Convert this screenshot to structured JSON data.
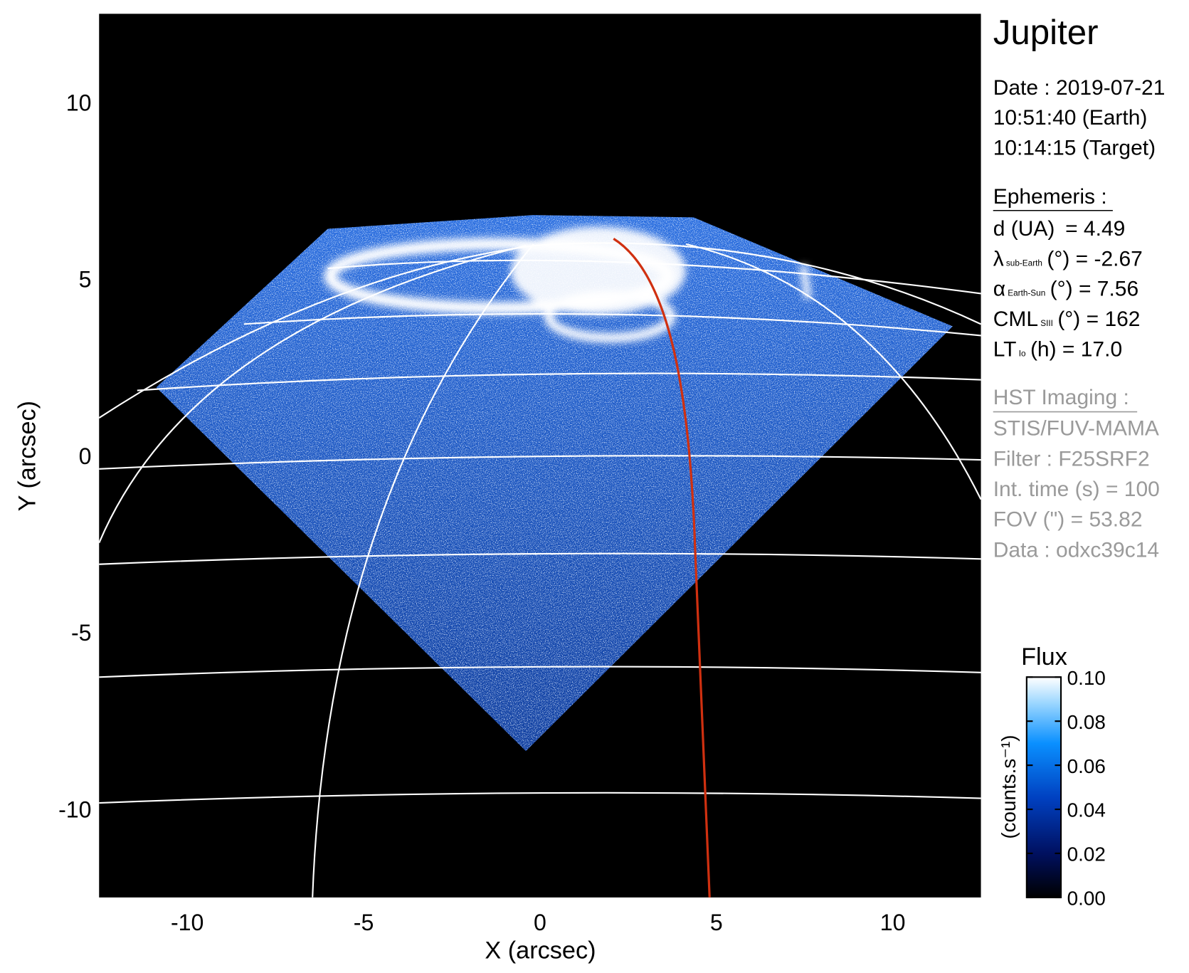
{
  "chart_data": {
    "type": "image",
    "title": "Jupiter",
    "xlabel": "X (arcsec)",
    "ylabel": "Y (arcsec)",
    "xlim": [
      -12.5,
      12.5
    ],
    "ylim": [
      -12.5,
      12.5
    ],
    "xticks": [
      -10,
      -5,
      0,
      5,
      10
    ],
    "yticks": [
      -10,
      -5,
      0,
      5,
      10
    ],
    "colorbar": {
      "title": "Flux",
      "label": "(counts.s⁻¹)",
      "lim": [
        0,
        0.1
      ],
      "ticks": [
        {
          "value": 0,
          "label": "0.00"
        },
        {
          "value": 0.02,
          "label": "0.02"
        },
        {
          "value": 0.04,
          "label": "0.04"
        },
        {
          "value": 0.06,
          "label": "0.06"
        },
        {
          "value": 0.08,
          "label": "0.08"
        },
        {
          "value": 0.1,
          "label": "0.10"
        }
      ]
    }
  },
  "info": {
    "date": [
      "Date : 2019-07-21",
      "10:51:40 (Earth)",
      "10:14:15 (Target)"
    ],
    "ephemeris": {
      "header": "Ephemeris :",
      "rows": [
        {
          "symbol": "d (UA)",
          "value": "   = 4.49"
        },
        {
          "symbol": "λ",
          "sub": "sub-Earth",
          "value": "(°) = -2.67"
        },
        {
          "symbol": "α",
          "sub": "Earth-Sun",
          "value": "(°) = 7.56"
        },
        {
          "symbol": "CML",
          "sub": "SIII",
          "value": "(°) = 162"
        },
        {
          "symbol": "LT",
          "sub": "Io",
          "value": "(h) = 17.0"
        }
      ]
    },
    "imaging": {
      "header": "HST Imaging :",
      "lines": [
        "STIS/FUV-MAMA",
        "Filter : F25SRF2",
        "Int. time (s) = 100",
        "FOV (\") = 53.82",
        "Data : odxc39c14"
      ]
    }
  }
}
